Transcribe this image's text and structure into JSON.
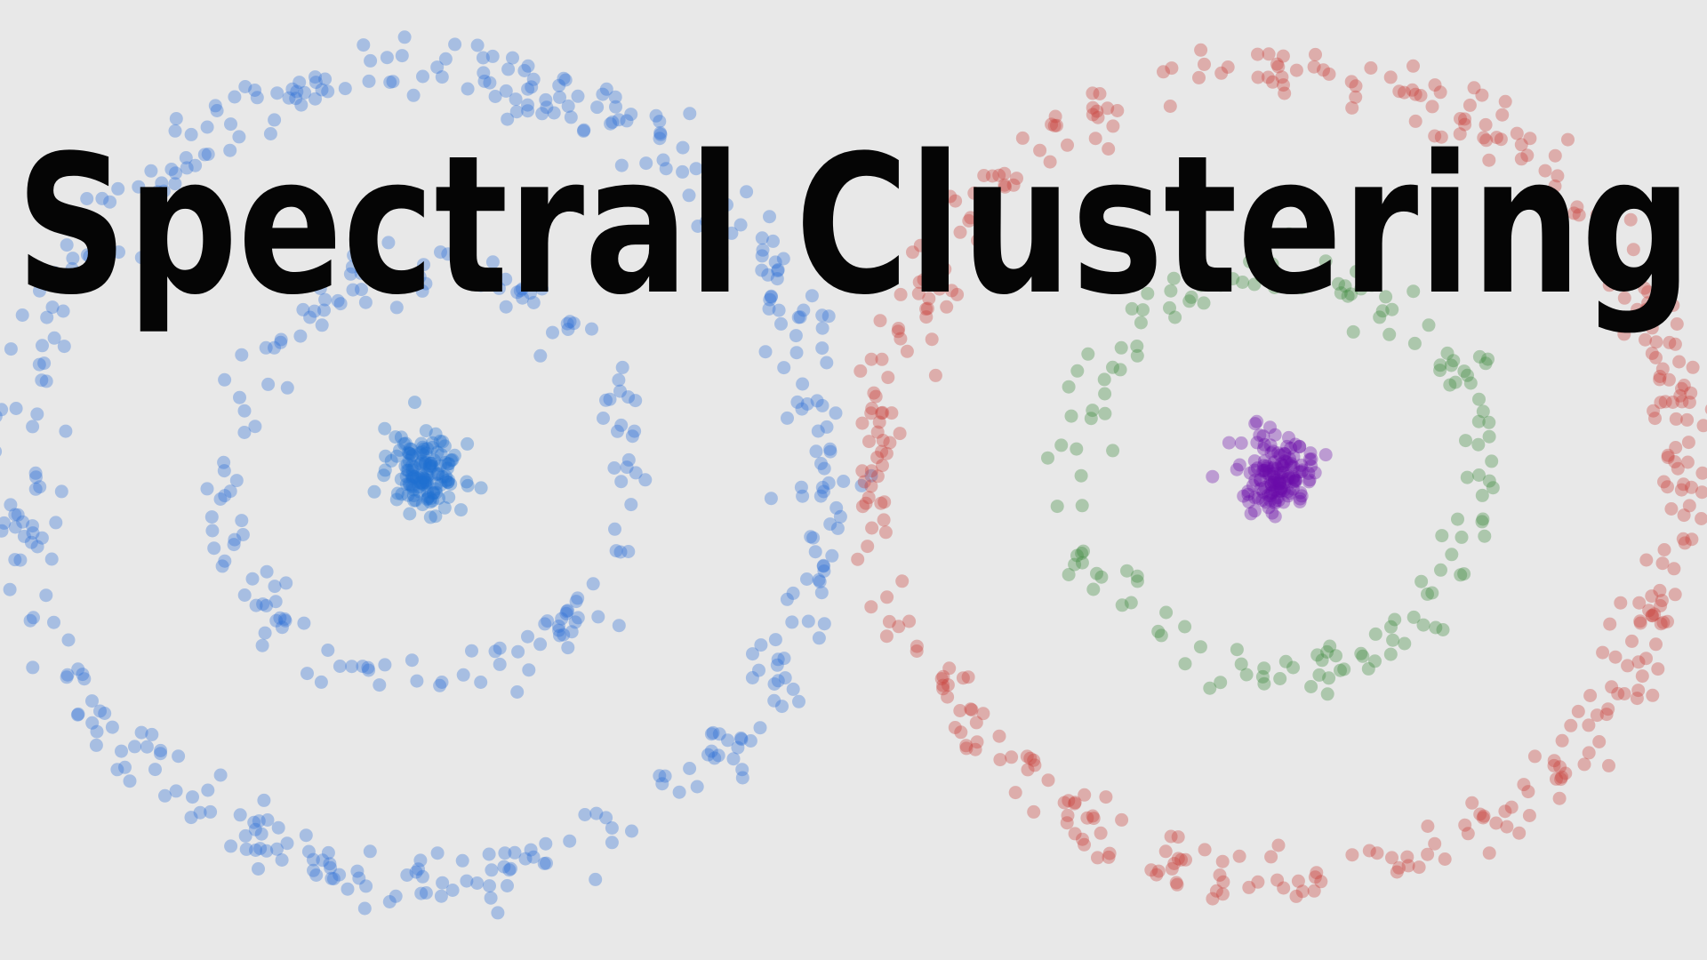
{
  "title": "Spectral Clustering"
}
